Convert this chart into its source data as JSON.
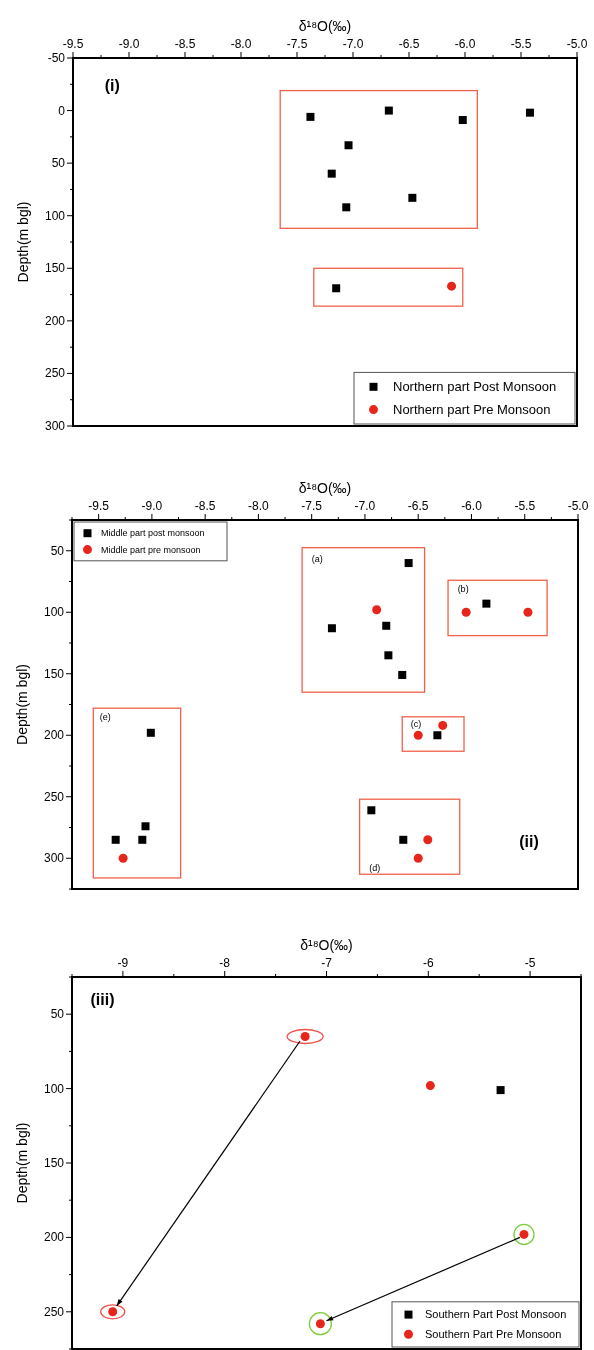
{
  "chart_data": [
    {
      "type": "scatter",
      "xlabel": "δ¹⁸O(‰)",
      "ylabel": "Depth(m bgl)",
      "xlim": [
        -9.5,
        -5.0
      ],
      "xticks": [
        {
          "value": -9.5,
          "label": "-9.5"
        },
        {
          "value": -9,
          "label": "-9.0"
        },
        {
          "value": -8.5,
          "label": "-8.5"
        },
        {
          "value": -8,
          "label": "-8.0"
        },
        {
          "value": -7.5,
          "label": "-7.5"
        },
        {
          "value": -7,
          "label": "-7.0"
        },
        {
          "value": -6.5,
          "label": "-6.5"
        },
        {
          "value": -6,
          "label": "-6.0"
        },
        {
          "value": -5.5,
          "label": "-5.5"
        },
        {
          "value": -5,
          "label": "-5.0"
        }
      ],
      "ylim": [
        300,
        -50
      ],
      "yticks": [
        -50,
        0,
        50,
        100,
        150,
        200,
        250,
        300
      ],
      "legend": "bottom right",
      "annotations": [
        "(i)"
      ],
      "series": [
        {
          "name": "Northern part Post Monsoon",
          "color": "#000000",
          "marker": "square",
          "x": [
            -7.38,
            -6.68,
            -6.02,
            -5.42,
            -7.04,
            -7.19,
            -6.47,
            -7.06,
            -7.15
          ],
          "values": [
            6,
            0,
            9,
            2,
            33,
            60,
            83,
            92,
            169
          ]
        },
        {
          "name": "Northern part Pre Monsoon",
          "color": "#e8251b",
          "marker": "circle",
          "x": [
            -6.12
          ],
          "values": [
            167
          ]
        }
      ]
    },
    {
      "type": "scatter",
      "xlabel": "δ¹⁸O(‰)",
      "ylabel": "Depth(m bgl)",
      "xlim": [
        -9.75,
        -5.0
      ],
      "xticks": [
        {
          "value": -9.5,
          "label": "-9.5"
        },
        {
          "value": -9,
          "label": "-9.0"
        },
        {
          "value": -8.5,
          "label": "-8.5"
        },
        {
          "value": -8,
          "label": "-8.0"
        },
        {
          "value": -7.5,
          "label": "-7.5"
        },
        {
          "value": -7,
          "label": "-7.0"
        },
        {
          "value": -6.5,
          "label": "-6.5"
        },
        {
          "value": -6,
          "label": "-6.0"
        },
        {
          "value": -5.5,
          "label": "-5.5"
        },
        {
          "value": -5,
          "label": "-5.0"
        }
      ],
      "ylim": [
        325,
        25
      ],
      "yticks": [
        50,
        100,
        150,
        200,
        250,
        300
      ],
      "legend": "top left",
      "annotations": [
        "(ii)",
        "(a)",
        "(b)",
        "(c)",
        "(d)",
        "(e)"
      ],
      "series": [
        {
          "name": "Middle part post monsoon",
          "color": "#000000",
          "marker": "square",
          "x": [
            -6.59,
            -7.31,
            -6.8,
            -6.78,
            -6.65,
            -5.86,
            -6.32,
            -9.01,
            -9.06,
            -9.34,
            -9.09,
            -6.94,
            -6.64
          ],
          "values": [
            60,
            113,
            111,
            135,
            151,
            93,
            200,
            198,
            274,
            285,
            285,
            261,
            285
          ]
        },
        {
          "name": "Middle part pre monsoon",
          "color": "#e8251b",
          "marker": "circle",
          "x": [
            -6.89,
            -6.05,
            -5.47,
            -6.5,
            -6.27,
            -6.41,
            -6.5,
            -9.27
          ],
          "values": [
            98,
            100,
            100,
            200,
            192,
            285,
            300,
            300
          ]
        }
      ]
    },
    {
      "type": "scatter",
      "xlabel": "δ¹⁸O(‰)",
      "ylabel": "Depth(m bgl)",
      "xlim": [
        -9.5,
        -4.5
      ],
      "xticks": [
        -9,
        -8,
        -7,
        -6,
        -5
      ],
      "ylim": [
        275,
        25
      ],
      "yticks": [
        50,
        100,
        150,
        200,
        250
      ],
      "legend": "bottom right",
      "annotations": [
        "(iii)"
      ],
      "series": [
        {
          "name": "Southern Part Post Monsoon",
          "color": "#000000",
          "marker": "square",
          "x": [
            -5.29
          ],
          "values": [
            101
          ]
        },
        {
          "name": "Southern Part Pre Monsoon",
          "color": "#e8251b",
          "marker": "circle",
          "x": [
            -7.21,
            -5.98,
            -5.06,
            -7.06,
            -9.1
          ],
          "values": [
            65,
            98,
            198,
            258,
            250
          ]
        }
      ]
    }
  ]
}
